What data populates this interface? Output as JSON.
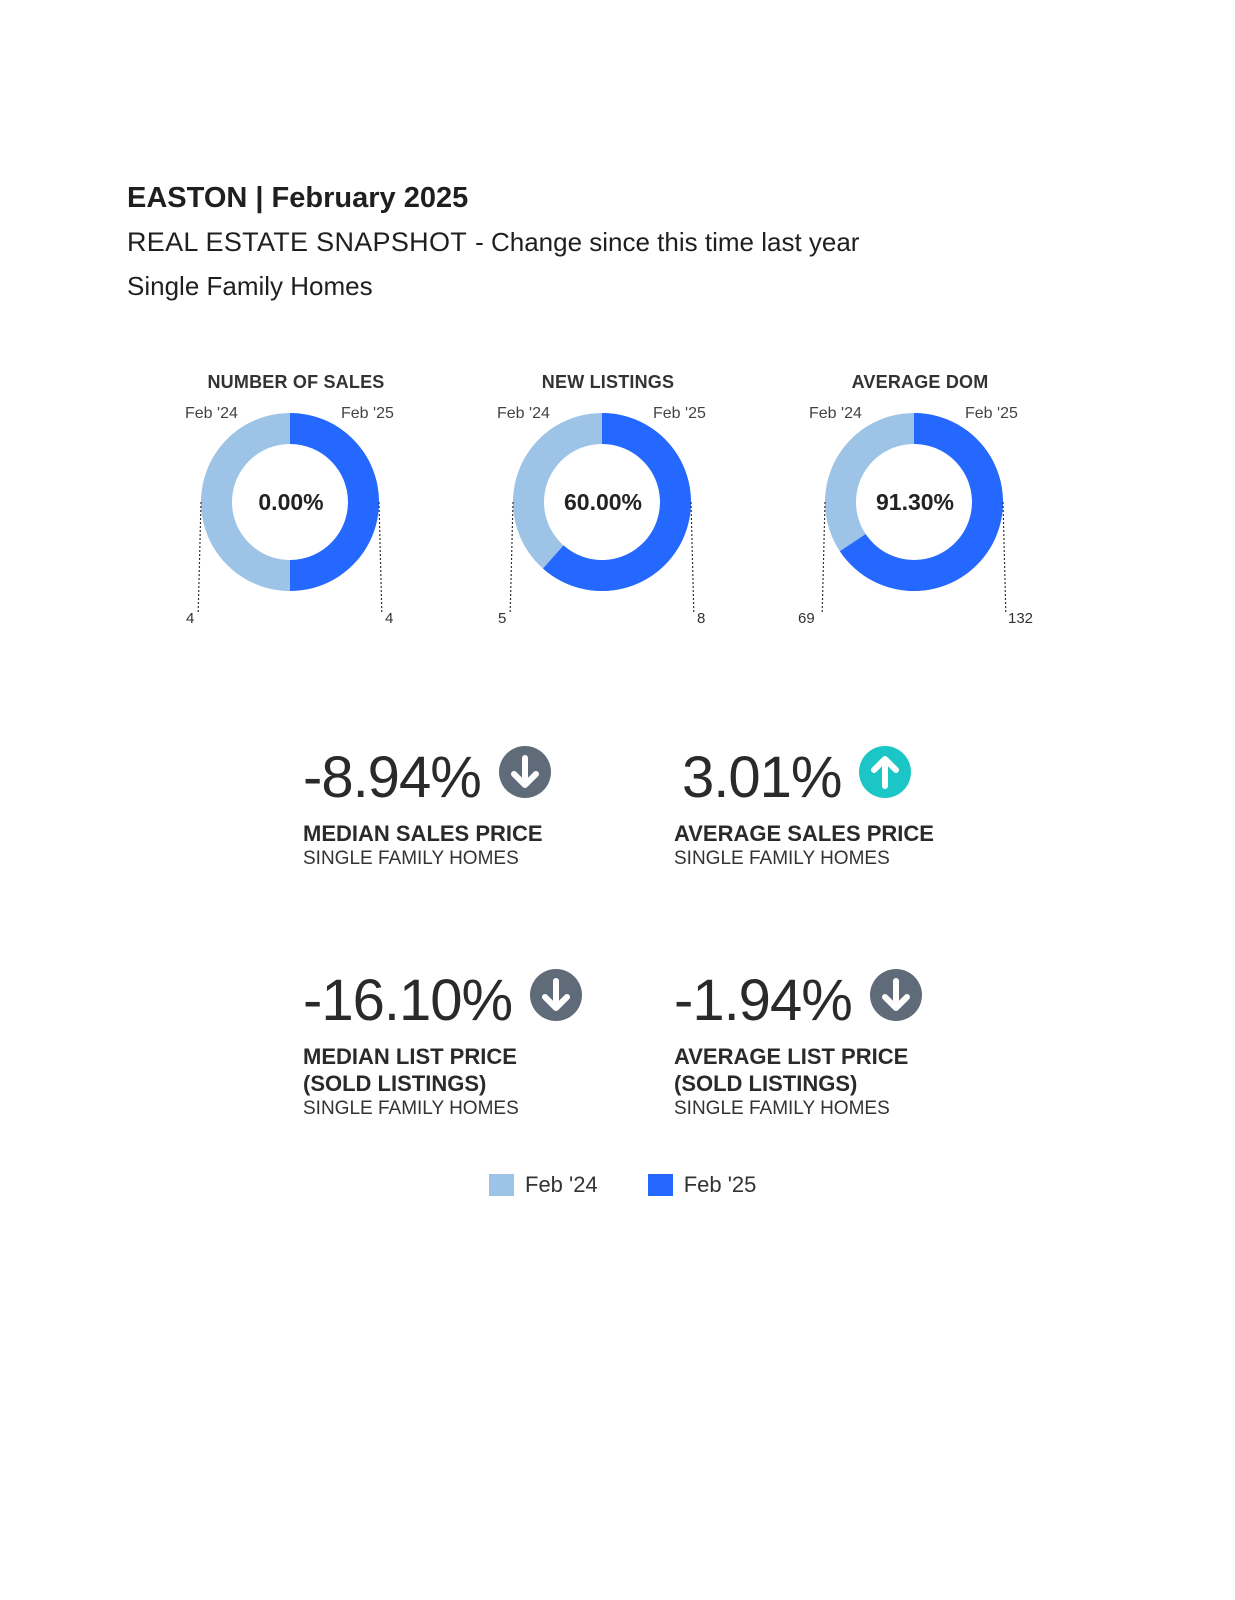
{
  "header": {
    "title": "EASTON | February 2025",
    "subtitle": "REAL ESTATE SNAPSHOT",
    "change_note": "- Change since this time last year",
    "segment": "Single Family Homes"
  },
  "colors": {
    "prior": "#9DC3E6",
    "current": "#2468FF",
    "down_arrow": "#5F6B78",
    "up_arrow": "#1CC6C6"
  },
  "chart_data": [
    {
      "type": "pie",
      "title": "NUMBER OF SALES",
      "series_labels": [
        "Feb '24",
        "Feb '25"
      ],
      "values": [
        4,
        4
      ],
      "center_label": "0.00%"
    },
    {
      "type": "pie",
      "title": "NEW LISTINGS",
      "series_labels": [
        "Feb '24",
        "Feb '25"
      ],
      "values": [
        5,
        8
      ],
      "center_label": "60.00%"
    },
    {
      "type": "pie",
      "title": "AVERAGE DOM",
      "series_labels": [
        "Feb '24",
        "Feb '25"
      ],
      "values": [
        69,
        132
      ],
      "center_label": "91.30%"
    }
  ],
  "kpis": [
    {
      "value": "-8.94%",
      "direction": "down",
      "icon": "arrow-down-circle-icon",
      "label": "MEDIAN SALES PRICE",
      "label2": "",
      "sub": "SINGLE FAMILY HOMES"
    },
    {
      "value": "3.01%",
      "direction": "up",
      "icon": "arrow-up-circle-icon",
      "label": "AVERAGE SALES PRICE",
      "label2": "",
      "sub": "SINGLE FAMILY HOMES"
    },
    {
      "value": "-16.10%",
      "direction": "down",
      "icon": "arrow-down-circle-icon",
      "label": "MEDIAN LIST PRICE",
      "label2": "(SOLD LISTINGS)",
      "sub": "SINGLE FAMILY HOMES"
    },
    {
      "value": "-1.94%",
      "direction": "down",
      "icon": "arrow-down-circle-icon",
      "label": "AVERAGE LIST PRICE",
      "label2": "(SOLD LISTINGS)",
      "sub": "SINGLE FAMILY HOMES"
    }
  ],
  "legend": [
    {
      "label": "Feb '24",
      "color": "#9DC3E6"
    },
    {
      "label": "Feb '25",
      "color": "#2468FF"
    }
  ]
}
